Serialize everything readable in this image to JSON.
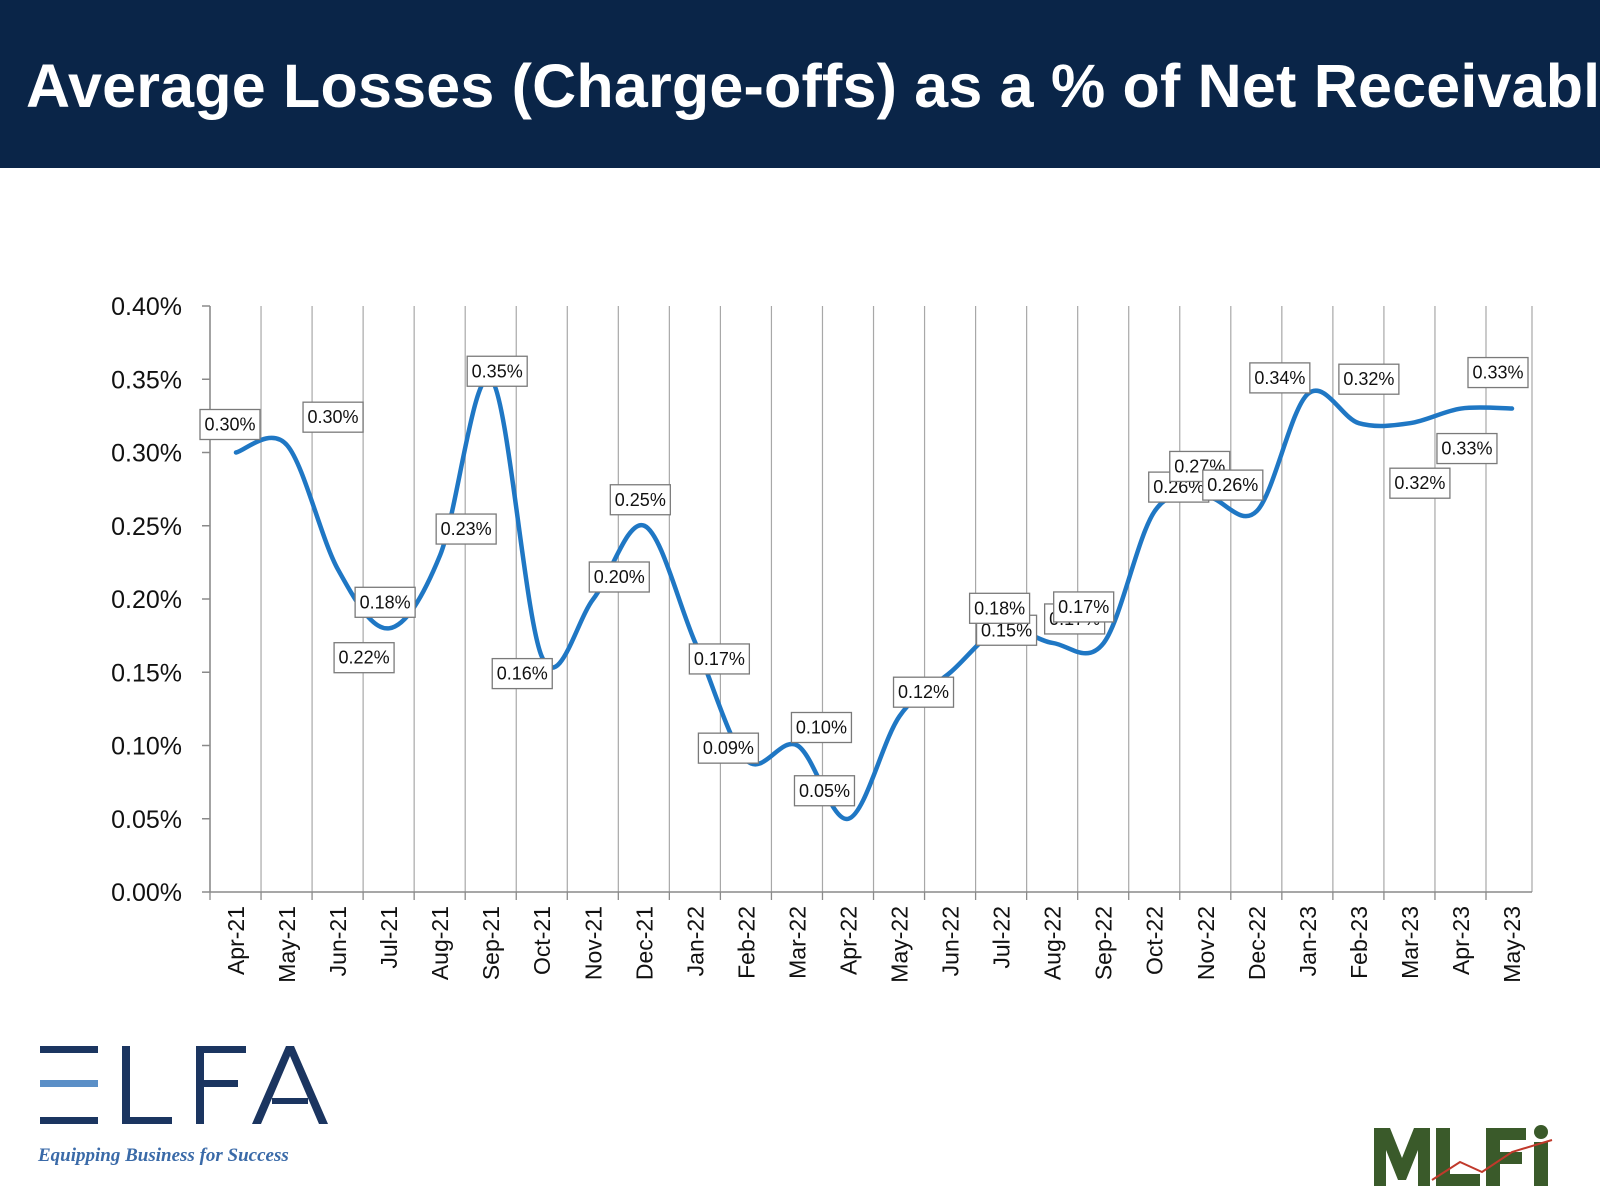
{
  "header": {
    "title": "Average Losses (Charge-offs) as a % of Net Receivables"
  },
  "logos": {
    "elfa": {
      "wordmark": "ELFA",
      "tagline": "Equipping Business for Success",
      "color": "#1b3560",
      "accent": "#5b8fc7"
    },
    "mlfi": {
      "wordmark": "MLFI",
      "color": "#3a5a2a"
    }
  },
  "colors": {
    "header_bg": "#0a2548",
    "line": "#1f77c4",
    "grid": "#a8a8a8"
  },
  "chart_data": {
    "type": "line",
    "title": "",
    "xlabel": "",
    "ylabel": "",
    "ylim": [
      0,
      0.004
    ],
    "y_ticks": [
      "0.00%",
      "0.05%",
      "0.10%",
      "0.15%",
      "0.20%",
      "0.25%",
      "0.30%",
      "0.35%",
      "0.40%"
    ],
    "grid": "vertical",
    "legend": "none",
    "categories": [
      "Apr-21",
      "May-21",
      "Jun-21",
      "Jul-21",
      "Aug-21",
      "Sep-21",
      "Oct-21",
      "Nov-21",
      "Dec-21",
      "Jan-22",
      "Feb-22",
      "Mar-22",
      "Apr-22",
      "May-22",
      "Jun-22",
      "Jul-22",
      "Aug-22",
      "Sep-22",
      "Oct-22",
      "Nov-22",
      "Dec-22",
      "Jan-23",
      "Feb-23",
      "Mar-23",
      "Apr-23",
      "May-23"
    ],
    "series": [
      {
        "values": [
          0.003,
          0.00305,
          0.0022,
          0.0018,
          0.0023,
          0.0035,
          0.0016,
          0.002,
          0.0025,
          0.0017,
          0.0009,
          0.001,
          0.0005,
          0.0012,
          0.0015,
          0.0018,
          0.0017,
          0.0017,
          0.0026,
          0.0027,
          0.0026,
          0.0034,
          0.0032,
          0.0032,
          0.0033,
          0.0033
        ],
        "data_labels": [
          "0.30%",
          "0.30%",
          "0.22%",
          "0.18%",
          "0.23%",
          "0.35%",
          "0.16%",
          "0.20%",
          "0.25%",
          "0.17%",
          "0.09%",
          "0.10%",
          "0.05%",
          "0.12%",
          "0.15%",
          "0.18%",
          "0.17%",
          "0.17%",
          "0.26%",
          "0.27%",
          "0.26%",
          "0.34%",
          "0.32%",
          "0.32%",
          "0.33%",
          "0.33%"
        ]
      }
    ]
  }
}
